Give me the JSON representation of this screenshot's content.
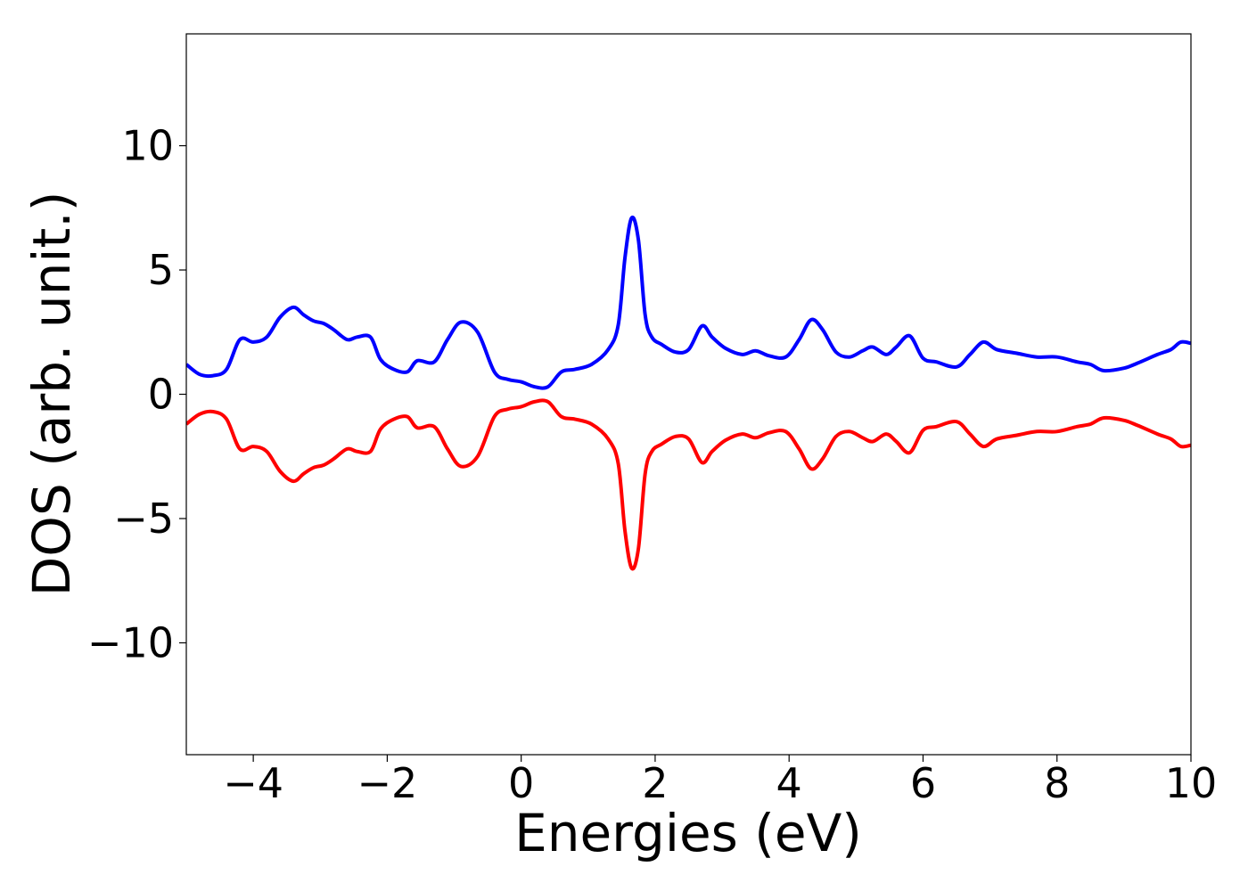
{
  "chart_data": {
    "type": "line",
    "title": "",
    "xlabel": "Energies (eV)",
    "ylabel": "DOS (arb. unit.)",
    "xlim": [
      -5,
      10
    ],
    "ylim": [
      -14.5,
      14.5
    ],
    "grid": false,
    "legend": "none",
    "x_ticks": [
      -4,
      -2,
      0,
      2,
      4,
      6,
      8,
      10
    ],
    "x_tick_labels": [
      "−4",
      "−2",
      "0",
      "2",
      "4",
      "6",
      "8",
      "10"
    ],
    "y_ticks": [
      -10,
      -5,
      0,
      5,
      10
    ],
    "y_tick_labels": [
      "−10",
      "−5",
      "0",
      "5",
      "10"
    ],
    "series": [
      {
        "color": "#0000ff",
        "x": [
          -5.0,
          -4.8,
          -4.6,
          -4.4,
          -4.2,
          -4.0,
          -3.8,
          -3.6,
          -3.4,
          -3.25,
          -3.1,
          -2.95,
          -2.8,
          -2.6,
          -2.45,
          -2.25,
          -2.1,
          -1.9,
          -1.7,
          -1.55,
          -1.3,
          -1.1,
          -0.9,
          -0.65,
          -0.4,
          -0.2,
          0.0,
          0.2,
          0.4,
          0.6,
          0.8,
          1.05,
          1.3,
          1.45,
          1.55,
          1.65,
          1.75,
          1.85,
          1.95,
          2.1,
          2.3,
          2.5,
          2.7,
          2.85,
          3.05,
          3.3,
          3.5,
          3.7,
          3.95,
          4.15,
          4.33,
          4.5,
          4.7,
          4.9,
          5.1,
          5.25,
          5.45,
          5.6,
          5.8,
          6.0,
          6.2,
          6.5,
          6.7,
          6.9,
          7.1,
          7.4,
          7.7,
          8.0,
          8.3,
          8.5,
          8.7,
          9.0,
          9.2,
          9.5,
          9.7,
          9.85,
          10.0
        ],
        "y": [
          1.2,
          0.8,
          0.75,
          1.0,
          2.2,
          2.1,
          2.3,
          3.1,
          3.5,
          3.2,
          2.95,
          2.85,
          2.6,
          2.2,
          2.3,
          2.3,
          1.4,
          1.0,
          0.9,
          1.35,
          1.3,
          2.2,
          2.9,
          2.5,
          0.9,
          0.6,
          0.5,
          0.3,
          0.3,
          0.9,
          1.0,
          1.2,
          1.8,
          2.8,
          5.5,
          7.1,
          6.2,
          3.2,
          2.3,
          2.0,
          1.7,
          1.8,
          2.75,
          2.3,
          1.85,
          1.6,
          1.75,
          1.55,
          1.5,
          2.2,
          3.0,
          2.6,
          1.7,
          1.5,
          1.75,
          1.9,
          1.6,
          1.9,
          2.35,
          1.45,
          1.3,
          1.1,
          1.6,
          2.1,
          1.8,
          1.65,
          1.5,
          1.5,
          1.3,
          1.2,
          0.95,
          1.05,
          1.25,
          1.6,
          1.8,
          2.1,
          2.05
        ]
      },
      {
        "color": "#ff0000",
        "x": [
          -5.0,
          -4.8,
          -4.6,
          -4.4,
          -4.2,
          -4.0,
          -3.8,
          -3.6,
          -3.4,
          -3.25,
          -3.1,
          -2.95,
          -2.8,
          -2.6,
          -2.45,
          -2.25,
          -2.1,
          -1.9,
          -1.7,
          -1.55,
          -1.3,
          -1.1,
          -0.9,
          -0.65,
          -0.4,
          -0.2,
          0.0,
          0.2,
          0.4,
          0.6,
          0.8,
          1.05,
          1.3,
          1.45,
          1.55,
          1.65,
          1.75,
          1.85,
          1.95,
          2.1,
          2.3,
          2.5,
          2.7,
          2.85,
          3.05,
          3.3,
          3.5,
          3.7,
          3.95,
          4.15,
          4.33,
          4.5,
          4.7,
          4.9,
          5.1,
          5.25,
          5.45,
          5.6,
          5.8,
          6.0,
          6.2,
          6.5,
          6.7,
          6.9,
          7.1,
          7.4,
          7.7,
          8.0,
          8.3,
          8.5,
          8.7,
          9.0,
          9.2,
          9.5,
          9.7,
          9.85,
          10.0
        ],
        "y": [
          -1.2,
          -0.8,
          -0.7,
          -1.0,
          -2.2,
          -2.1,
          -2.3,
          -3.1,
          -3.5,
          -3.2,
          -2.95,
          -2.85,
          -2.6,
          -2.2,
          -2.3,
          -2.3,
          -1.4,
          -1.0,
          -0.9,
          -1.35,
          -1.3,
          -2.2,
          -2.9,
          -2.5,
          -0.9,
          -0.6,
          -0.5,
          -0.3,
          -0.3,
          -0.9,
          -1.0,
          -1.2,
          -1.8,
          -2.8,
          -5.5,
          -7.0,
          -6.2,
          -3.2,
          -2.3,
          -2.0,
          -1.7,
          -1.8,
          -2.75,
          -2.3,
          -1.85,
          -1.6,
          -1.75,
          -1.55,
          -1.5,
          -2.2,
          -3.0,
          -2.6,
          -1.7,
          -1.5,
          -1.75,
          -1.9,
          -1.6,
          -1.9,
          -2.35,
          -1.45,
          -1.3,
          -1.1,
          -1.6,
          -2.1,
          -1.8,
          -1.65,
          -1.5,
          -1.5,
          -1.3,
          -1.2,
          -0.95,
          -1.05,
          -1.25,
          -1.6,
          -1.8,
          -2.1,
          -2.05
        ]
      }
    ]
  }
}
